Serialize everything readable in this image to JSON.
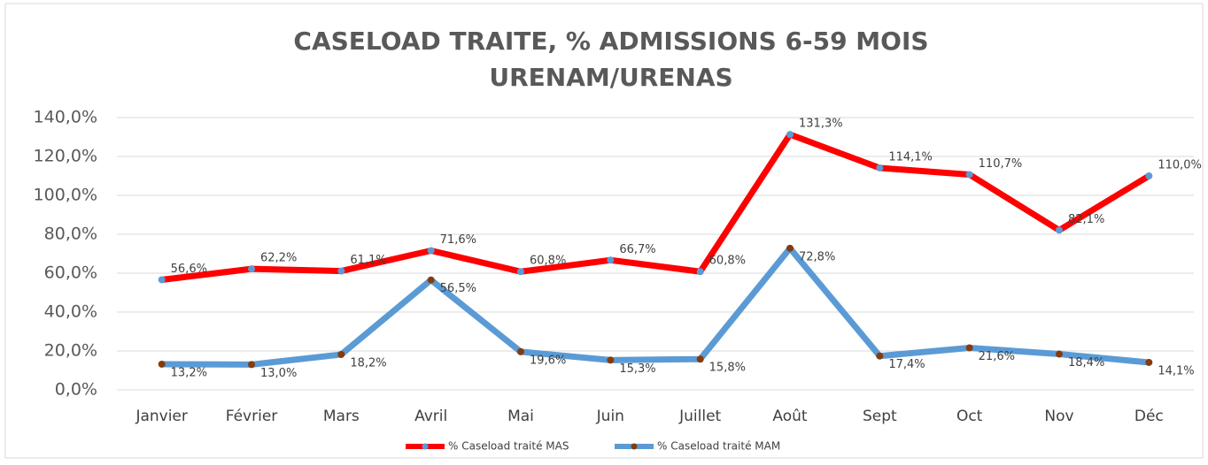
{
  "chart_data": {
    "type": "line",
    "title": [
      "CASELOAD TRAITE,    % ADMISSIONS 6-59 MOIS",
      "URENAM/URENAS"
    ],
    "categories": [
      "Janvier",
      "Février",
      "Mars",
      "Avril",
      "Mai",
      "Juin",
      "Juillet",
      "Août",
      "Sept",
      "Oct",
      "Nov",
      "Déc"
    ],
    "series": [
      {
        "name": "% Caseload traité MAS",
        "color": "#ff0000",
        "marker_color": "#5b9bd5",
        "values": [
          56.6,
          62.2,
          61.1,
          71.6,
          60.8,
          66.7,
          60.8,
          131.3,
          114.1,
          110.7,
          82.1,
          110.0
        ],
        "value_labels": [
          "56,6%",
          "62,2%",
          "61,1%",
          "71,6%",
          "60,8%",
          "66,7%",
          "60,8%",
          "131,3%",
          "114,1%",
          "110,7%",
          "82,1%",
          "110,0%"
        ]
      },
      {
        "name": "% Caseload traité MAM",
        "color": "#5b9bd5",
        "marker_color": "#843c0c",
        "values": [
          13.2,
          13.0,
          18.2,
          56.5,
          19.6,
          15.3,
          15.8,
          72.8,
          17.4,
          21.6,
          18.4,
          14.1
        ],
        "value_labels": [
          "13,2%",
          "13,0%",
          "18,2%",
          "56,5%",
          "19,6%",
          "15,3%",
          "15,8%",
          "72,8%",
          "17,4%",
          "21,6%",
          "18,4%",
          "14,1%"
        ]
      }
    ],
    "ylim": [
      0,
      140
    ],
    "yticks": [
      {
        "value": 0,
        "label": "0,0%"
      },
      {
        "value": 20,
        "label": "20,0%"
      },
      {
        "value": 40,
        "label": "40,0%"
      },
      {
        "value": 60,
        "label": "60,0%"
      },
      {
        "value": 80,
        "label": "80,0%"
      },
      {
        "value": 100,
        "label": "100,0%"
      },
      {
        "value": 120,
        "label": "120,0%"
      },
      {
        "value": 140,
        "label": "140,0%"
      }
    ],
    "grid": true,
    "legend": "bottom"
  }
}
